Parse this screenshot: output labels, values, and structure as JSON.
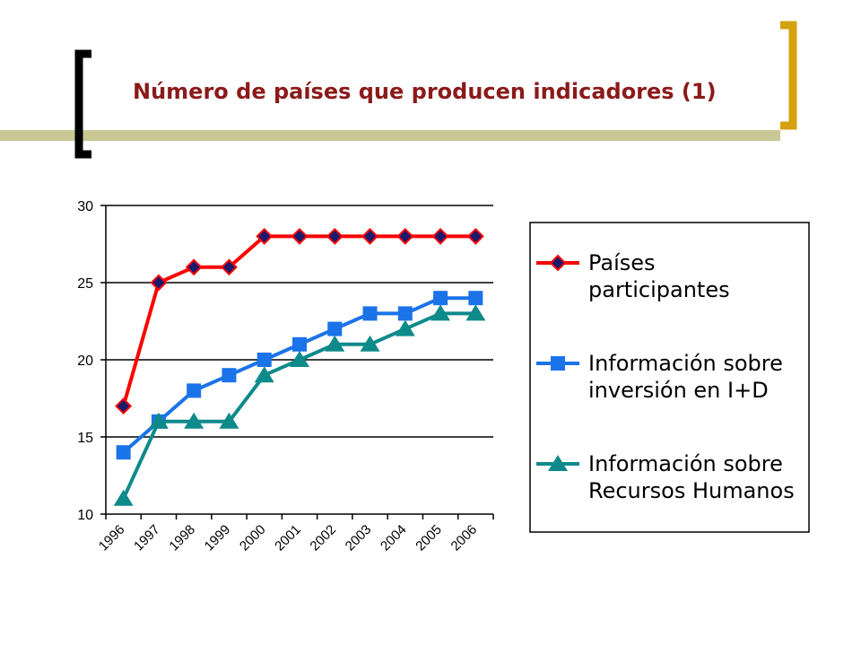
{
  "slide": {
    "title": "Número de países que producen indicadores (1)"
  },
  "colors": {
    "accent_gold": "#d4a20f",
    "title_text": "#8b1a1a",
    "band": "#c9c794"
  },
  "chart_data": {
    "type": "line",
    "title": "",
    "xlabel": "",
    "ylabel": "",
    "categories": [
      "1996",
      "1997",
      "1998",
      "1999",
      "2000",
      "2001",
      "2002",
      "2003",
      "2004",
      "2005",
      "2006"
    ],
    "ylim": [
      10,
      30
    ],
    "yticks": [
      "10",
      "15",
      "20",
      "25",
      "30"
    ],
    "grid": true,
    "legend_position": "right",
    "series": [
      {
        "name": "Países participantes",
        "legend_lines": [
          "Países",
          "participantes"
        ],
        "color": "#ff0000",
        "marker": "diamond",
        "marker_fill": "#1a1a6e",
        "values": [
          17,
          25,
          26,
          26,
          28,
          28,
          28,
          28,
          28,
          28,
          28
        ]
      },
      {
        "name": "Información sobre inversión en I+D",
        "legend_lines": [
          "Información sobre",
          "inversión en I+D"
        ],
        "color": "#1a73e8",
        "marker": "square",
        "marker_fill": "#1a73e8",
        "values": [
          14,
          16,
          18,
          19,
          20,
          21,
          22,
          23,
          23,
          24,
          24
        ]
      },
      {
        "name": "Información sobre Recursos Humanos",
        "legend_lines": [
          "Información sobre",
          "Recursos Humanos"
        ],
        "color": "#0f8a8a",
        "marker": "triangle",
        "marker_fill": "#0f8a8a",
        "values": [
          11,
          16,
          16,
          16,
          19,
          20,
          21,
          21,
          22,
          23,
          23
        ]
      }
    ]
  }
}
